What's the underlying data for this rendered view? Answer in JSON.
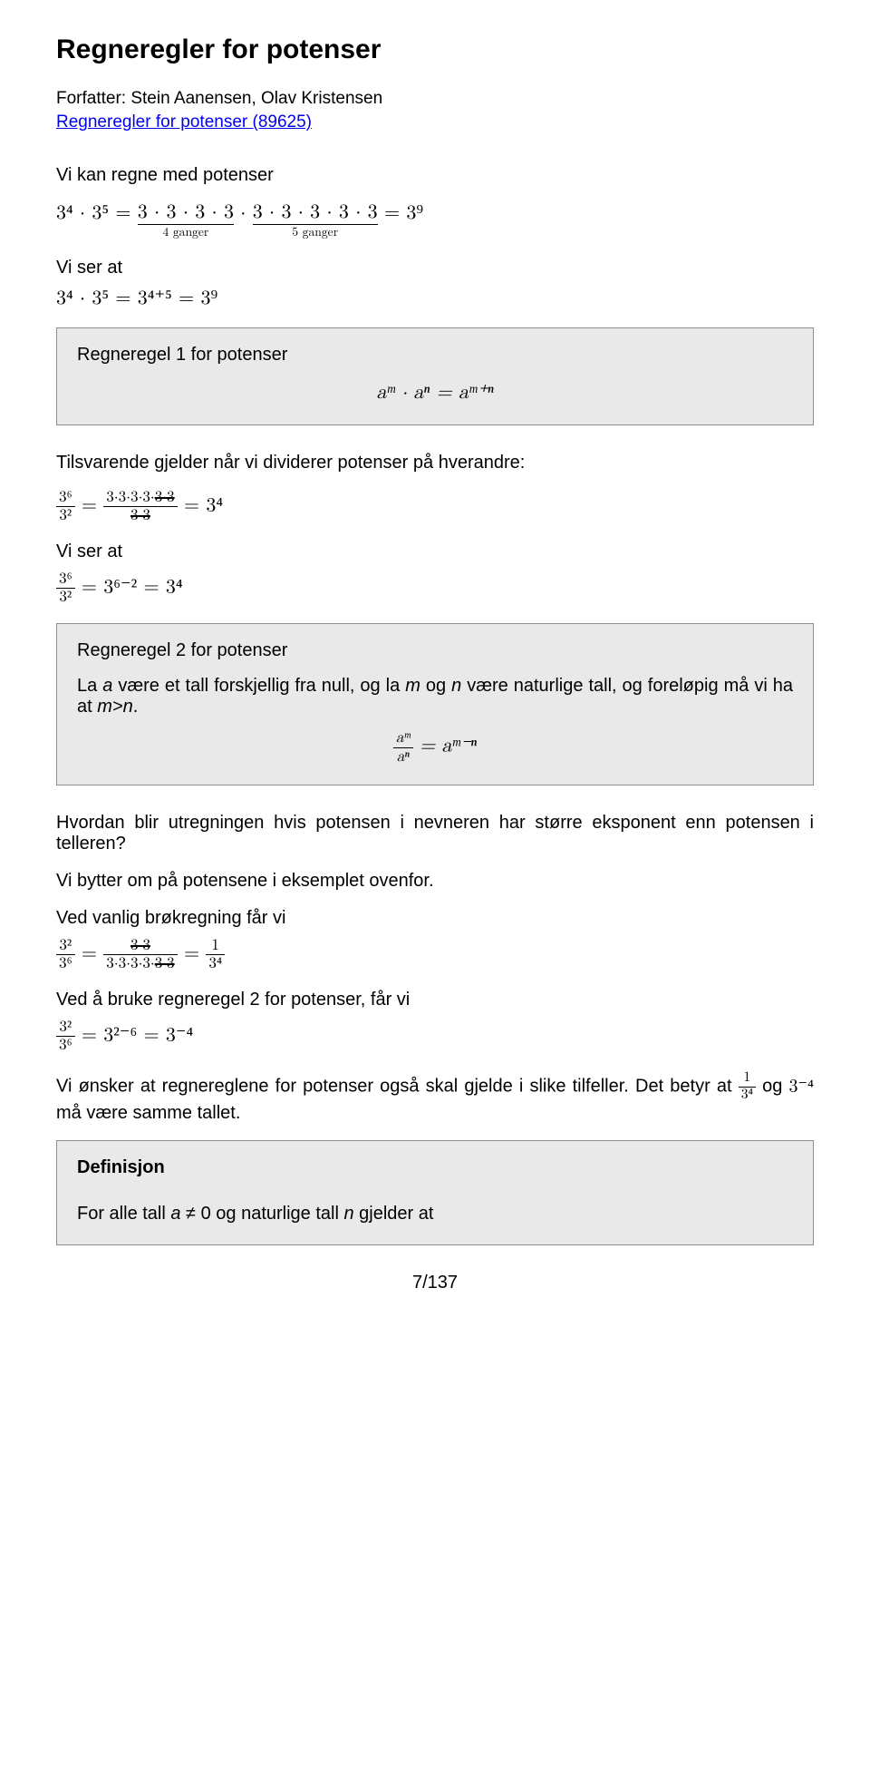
{
  "title": "Regneregler for potenser",
  "authors_label": "Forfatter: ",
  "authors": "Stein Aanensen, Olav Kristensen",
  "link_text": "Regneregler for potenser (89625)",
  "p1": "Vi kan regne med potenser",
  "eq1_lhs": "3⁴ · 3⁵ =",
  "eq1_grp1_top": "3 · 3 · 3 · 3",
  "eq1_grp1_bot": "4 ganger",
  "eq1_sep": " · ",
  "eq1_grp2_top": "3 · 3 · 3 · 3 · 3",
  "eq1_grp2_bot": "5 ganger",
  "eq1_rhs": " = 3⁹",
  "p2": "Vi ser at",
  "eq2": "3⁴ · 3⁵ = 3⁴⁺⁵ = 3⁹",
  "rule1_label": "Regneregel 1 for potenser",
  "rule1_math": "aᵐ · aⁿ = aᵐ⁺ⁿ",
  "p3": "Tilsvarende gjelder når vi dividerer potenser på hverandre:",
  "eq3_frac_num": "3⁶",
  "eq3_frac_den": "3²",
  "eq3_eq": " = ",
  "eq3_mid_num_plain": "3·3·3·3·",
  "eq3_mid_num_str": "3·3",
  "eq3_mid_den_str": "3·3",
  "eq3_rhs": " = 3⁴",
  "p4": "Vi ser at",
  "eq4_lfrac_num": "3⁶",
  "eq4_lfrac_den": "3²",
  "eq4_rhs": " = 3⁶⁻² = 3⁴",
  "rule2_label": "Regneregel 2 for potenser",
  "rule2_text1": "La a være et tall forskjellig fra null, og la m og n være naturlige tall, og foreløpig må vi ha at m>n.",
  "rule2_text_pre": "La ",
  "rule2_a1": "a",
  "rule2_text_mid1": " være et tall forskjellig fra null, og la ",
  "rule2_m": "m",
  "rule2_and": " og ",
  "rule2_n": "n",
  "rule2_text_mid2": " være naturlige tall, og foreløpig må vi ha at ",
  "rule2_mn": "m>n",
  "rule2_period": ".",
  "rule2_math_num": "aᵐ",
  "rule2_math_den": "aⁿ",
  "rule2_math_rhs": " = aᵐ⁻ⁿ",
  "p5": "Hvordan blir utregningen hvis potensen i nevneren har større eksponent enn potensen i telleren?",
  "p6": "Vi bytter om på potensene i eksemplet ovenfor.",
  "p7": "Ved vanlig brøkregning får vi",
  "eq5_lfrac_num": "3²",
  "eq5_lfrac_den": "3⁶",
  "eq5_eq": " = ",
  "eq5_mid_num_str": "3·3",
  "eq5_mid_den_plain": "3·3·3·3·",
  "eq5_mid_den_str": "3·3",
  "eq5_rhs_num": "1",
  "eq5_rhs_den": "3⁴",
  "p8": "Ved å bruke regneregel 2 for potenser, får vi",
  "eq6_lfrac_num": "3²",
  "eq6_lfrac_den": "3⁶",
  "eq6_rhs": " = 3²⁻⁶ = 3⁻⁴",
  "p9a": "Vi ønsker at regnereglene for potenser også skal gjelde i slike tilfeller. Det betyr at ",
  "p9_frac_num": "1",
  "p9_frac_den": "3⁴",
  "p9_and": " og ",
  "p9_m2": " 3⁻⁴ ",
  "p9b": " må være samme tallet.",
  "def_label": "Definisjon",
  "def_text_pre": "For alle tall ",
  "def_a": "a",
  "def_neq": " ≠ 0 og naturlige tall ",
  "def_n": "n",
  "def_post": " gjelder at",
  "pagenum": "7/137",
  "colors": {
    "boxbg": "#e9e9e9",
    "boxborder": "#909090",
    "link": "#0000ee",
    "text": "#000000",
    "bg": "#ffffff"
  },
  "fontsizes": {
    "title": 30,
    "body": 20,
    "math": 22
  }
}
